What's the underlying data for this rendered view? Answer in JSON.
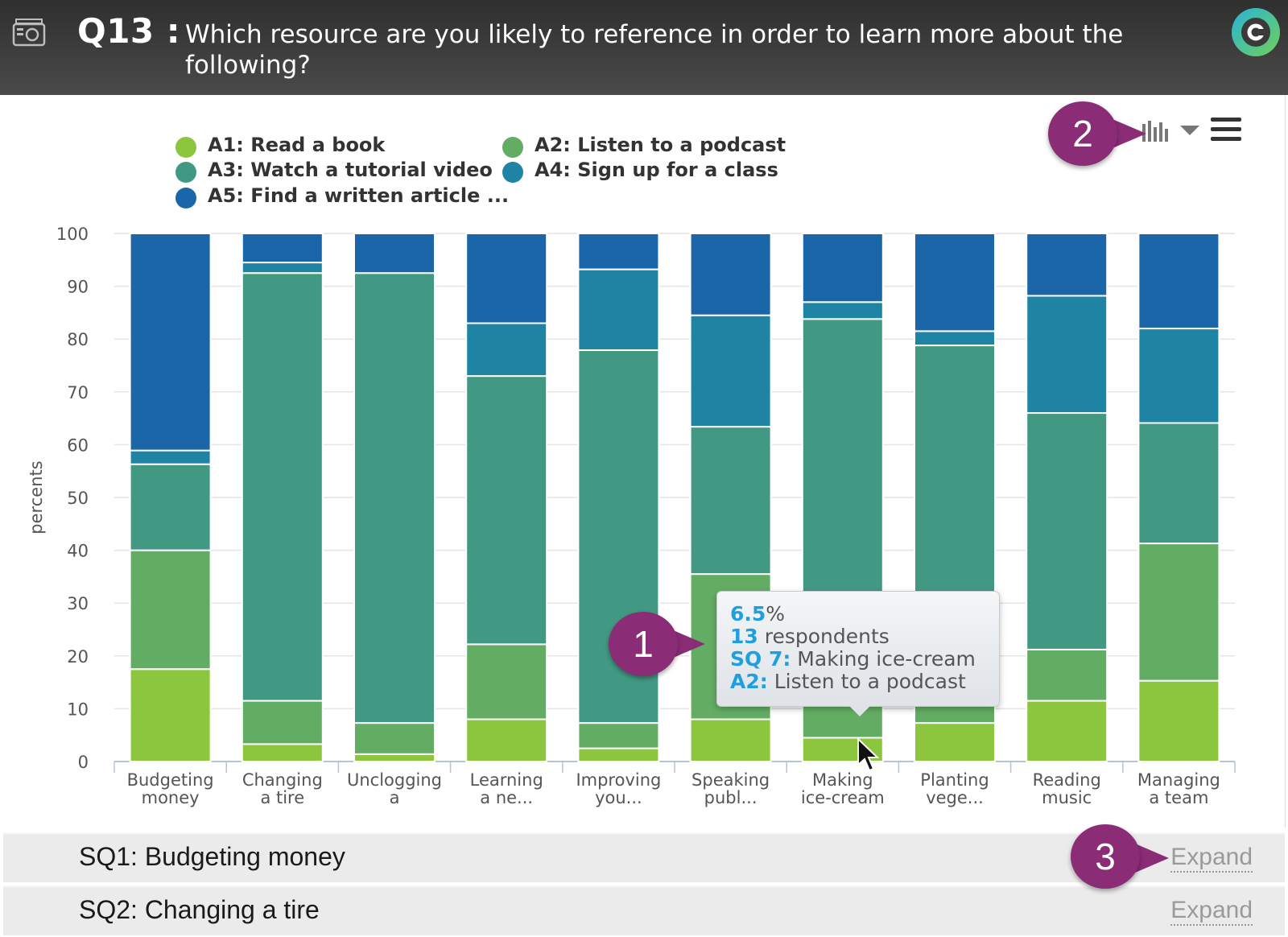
{
  "header": {
    "question_number": "Q13 :",
    "question_text": "Which resource are you likely to reference in order to learn more about the following?"
  },
  "toolbar": {
    "chart_type_icon": "bar-chart-icon",
    "dropdown_icon": "chevron-down-icon",
    "menu_icon": "hamburger-menu-icon"
  },
  "callouts": [
    "1",
    "2",
    "3"
  ],
  "tooltip": {
    "percent_value": "6.5",
    "percent_sign": "%",
    "respondents_value": "13",
    "respondents_label": " respondents",
    "sq_key": "SQ 7:",
    "sq_value": " Making ice-cream",
    "answer_key": "A2:",
    "answer_value": " Listen to a podcast"
  },
  "colors": {
    "A1": "#8cc63f",
    "A2": "#62ad63",
    "A3": "#429983",
    "A4": "#1f83a4",
    "A5": "#1b66a8",
    "callout": "#8b2c77",
    "tooltip_accent": "#1f9fe0"
  },
  "chart_data": {
    "type": "bar",
    "stacked": true,
    "ylabel": "percents",
    "ylim": [
      0,
      100
    ],
    "yticks": [
      0,
      10,
      20,
      30,
      40,
      50,
      60,
      70,
      80,
      90,
      100
    ],
    "grid": true,
    "legend_position": "top-left",
    "categories": [
      [
        "Budgeting",
        "money"
      ],
      [
        "Changing",
        "a tire"
      ],
      [
        "Unclogging",
        "a"
      ],
      [
        "Learning",
        "a ne..."
      ],
      [
        "Improving",
        "you..."
      ],
      [
        "Speaking",
        "publ..."
      ],
      [
        "Making",
        "ice-cream"
      ],
      [
        "Planting",
        "vege..."
      ],
      [
        "Reading",
        "music"
      ],
      [
        "Managing",
        "a team"
      ]
    ],
    "series": [
      {
        "name": "A1: Read a book",
        "key": "A1",
        "values": [
          17.5,
          3.3,
          1.4,
          8.0,
          2.5,
          8.0,
          4.5,
          7.3,
          11.5,
          15.3
        ]
      },
      {
        "name": "A2: Listen to a podcast",
        "key": "A2",
        "values": [
          22.5,
          8.2,
          5.9,
          14.2,
          4.8,
          27.5,
          6.5,
          12.3,
          9.7,
          26.0
        ]
      },
      {
        "name": "A3: Watch a tutorial video",
        "key": "A3",
        "values": [
          16.3,
          81.0,
          85.2,
          50.8,
          70.6,
          27.9,
          72.8,
          59.2,
          44.8,
          22.8
        ]
      },
      {
        "name": "A4: Sign up for a class",
        "key": "A4",
        "values": [
          2.6,
          2.0,
          0.0,
          10.0,
          15.3,
          21.1,
          3.2,
          2.7,
          22.2,
          17.9
        ]
      },
      {
        "name": "A5: Find a written article ...",
        "key": "A5",
        "values": [
          41.1,
          5.5,
          7.5,
          17.0,
          6.8,
          15.5,
          13.0,
          18.5,
          11.8,
          18.0
        ]
      }
    ]
  },
  "subquestions": [
    {
      "label": "SQ1: Budgeting money",
      "action": "Expand"
    },
    {
      "label": "SQ2: Changing a tire",
      "action": "Expand"
    }
  ]
}
